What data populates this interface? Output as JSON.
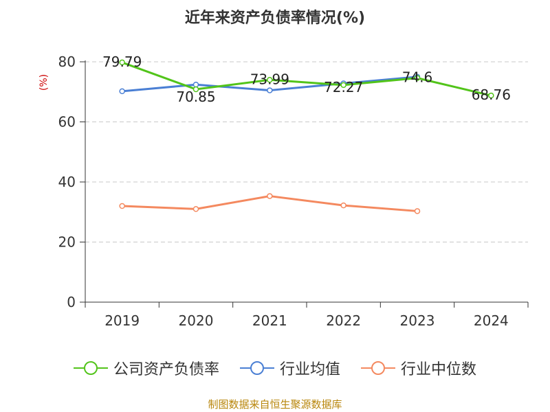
{
  "chart_data": {
    "type": "line",
    "title": "近年来资产负债率情况(%)",
    "ylabel": "(%)",
    "xlabel": "",
    "categories": [
      "2019",
      "2020",
      "2021",
      "2022",
      "2023",
      "2024"
    ],
    "ylim": [
      0,
      80
    ],
    "yticks": [
      0,
      20,
      40,
      60,
      80
    ],
    "grid": true,
    "legend_position": "bottom",
    "series": [
      {
        "name": "公司资产负债率",
        "color": "#52c41a",
        "values": [
          79.79,
          70.85,
          73.99,
          72.27,
          74.6,
          68.76
        ],
        "labels": [
          "79.79",
          "70.85",
          "73.99",
          "72.27",
          "74.6",
          "68.76"
        ]
      },
      {
        "name": "行业均值",
        "color": "#4a7fd4",
        "values": [
          70.2,
          72.4,
          70.5,
          72.8,
          75.0,
          null
        ],
        "labels": []
      },
      {
        "name": "行业中位数",
        "color": "#f4895f",
        "values": [
          32.0,
          31.0,
          35.3,
          32.2,
          30.3,
          null
        ],
        "labels": []
      }
    ]
  },
  "source": "制图数据来自恒生聚源数据库"
}
